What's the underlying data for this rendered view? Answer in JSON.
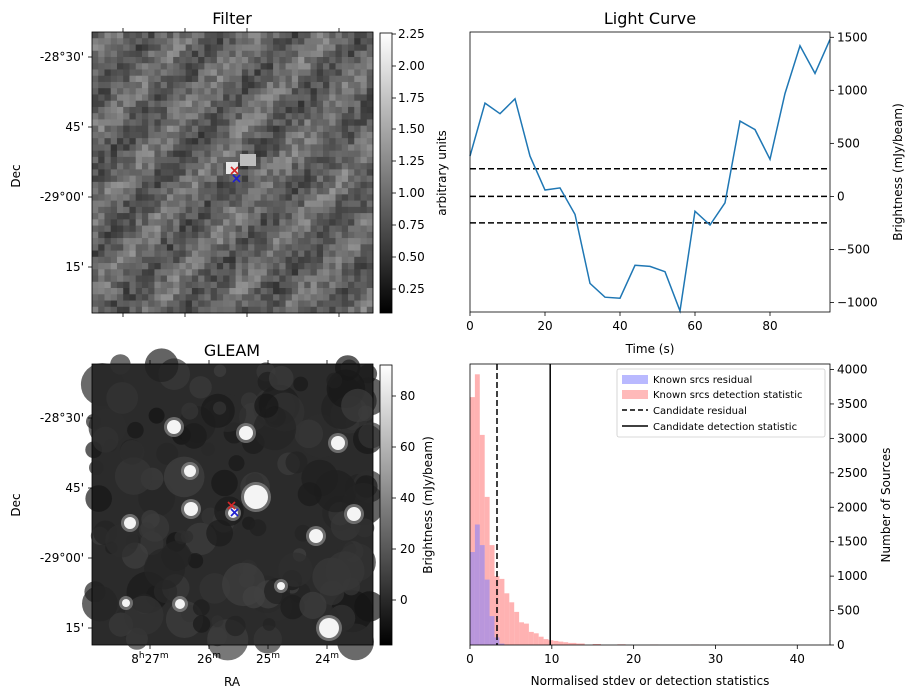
{
  "panels": {
    "filter": {
      "title": "Filter",
      "ylabel": "Dec",
      "yticks": [
        "-28°30'",
        "45'",
        "-29°00'",
        "15'"
      ],
      "colorbar": {
        "label": "arbitrary units",
        "ticks": [
          "2.25",
          "2.00",
          "1.75",
          "1.50",
          "1.25",
          "1.00",
          "0.75",
          "0.50",
          "0.25"
        ],
        "cmap": "grayscale"
      },
      "markers": [
        {
          "symbol": "x",
          "color": "#d62728"
        },
        {
          "symbol": "x",
          "color": "#1f1fd0"
        }
      ]
    },
    "gleam": {
      "title": "GLEAM",
      "ylabel": "Dec",
      "xlabel": "RA",
      "yticks": [
        "-28°30'",
        "45'",
        "-29°00'",
        "15'"
      ],
      "xticks": [
        "8h27m",
        "26m",
        "25m",
        "24m"
      ],
      "colorbar": {
        "label": "Brightness (mJy/beam)",
        "ticks": [
          "80",
          "60",
          "40",
          "20",
          "0"
        ],
        "cmap": "grayscale"
      },
      "markers": [
        {
          "symbol": "x",
          "color": "#d62728"
        },
        {
          "symbol": "x",
          "color": "#1f1fd0"
        }
      ]
    }
  },
  "chart_data": [
    {
      "type": "line",
      "title": "Light Curve",
      "xlabel": "Time (s)",
      "ylabel": "Brightness (mJy/beam)",
      "xlim": [
        0,
        96
      ],
      "ylim": [
        -1090,
        1550
      ],
      "xticks": [
        "0",
        "20",
        "40",
        "60",
        "80"
      ],
      "yticks": [
        "1500",
        "1000",
        "500",
        "0",
        "-500",
        "-1000"
      ],
      "yaxis_side": "right",
      "series": [
        {
          "color": "#1f77b4",
          "x": [
            0,
            4,
            8,
            12,
            16,
            20,
            24,
            28,
            32,
            36,
            40,
            44,
            48,
            52,
            56,
            60,
            64,
            68,
            72,
            76,
            80,
            84,
            88,
            92,
            96
          ],
          "y": [
            380,
            880,
            780,
            920,
            380,
            60,
            80,
            -170,
            -820,
            -950,
            -960,
            -650,
            -660,
            -710,
            -1080,
            -140,
            -270,
            -60,
            710,
            630,
            350,
            970,
            1420,
            1160,
            1480
          ]
        }
      ],
      "hlines": [
        {
          "y": 260,
          "style": "dashed",
          "color": "#000000"
        },
        {
          "y": 0,
          "style": "dashed",
          "color": "#000000"
        },
        {
          "y": -250,
          "style": "dashed",
          "color": "#000000"
        }
      ],
      "grid": false
    },
    {
      "type": "bar",
      "subtype": "histogram",
      "xlabel": "Normalised stdev or detection statistics",
      "ylabel": "Number of Sources",
      "xlim": [
        0,
        44
      ],
      "ylim": [
        0,
        4080
      ],
      "xticks": [
        "0",
        "10",
        "20",
        "30",
        "40"
      ],
      "yticks": [
        "0",
        "500",
        "1000",
        "1500",
        "2000",
        "2500",
        "3000",
        "3500",
        "4000"
      ],
      "yaxis_side": "right",
      "legend_position": "top-right",
      "bin_width": 0.6,
      "series": [
        {
          "name": "Known srcs residual",
          "color": "#7f7fff",
          "bin_starts": [
            0,
            0.6,
            1.2,
            1.8,
            2.4,
            3.0,
            3.6
          ],
          "values": [
            1350,
            1750,
            1450,
            950,
            420,
            110,
            20
          ]
        },
        {
          "name": "Known srcs detection statistic",
          "color": "#ff7f7f",
          "bin_starts": [
            0,
            0.6,
            1.2,
            1.8,
            2.4,
            3.0,
            3.6,
            4.2,
            4.8,
            5.4,
            6.0,
            6.6,
            7.2,
            7.8,
            8.4,
            9.0,
            9.6,
            10.2,
            10.8,
            11.4,
            12.0,
            13.0,
            15.0,
            18.0,
            22.0,
            27.0,
            33.0
          ],
          "values": [
            3600,
            3930,
            3050,
            2150,
            1450,
            1000,
            960,
            750,
            620,
            480,
            330,
            310,
            190,
            170,
            120,
            85,
            70,
            60,
            50,
            40,
            30,
            22,
            15,
            10,
            6,
            4,
            2
          ]
        }
      ],
      "vlines": [
        {
          "name": "Candidate residual",
          "x": 3.3,
          "style": "dashed",
          "color": "#000000"
        },
        {
          "name": "Candidate detection statistic",
          "x": 9.8,
          "style": "solid",
          "color": "#000000"
        }
      ],
      "grid": false
    }
  ]
}
